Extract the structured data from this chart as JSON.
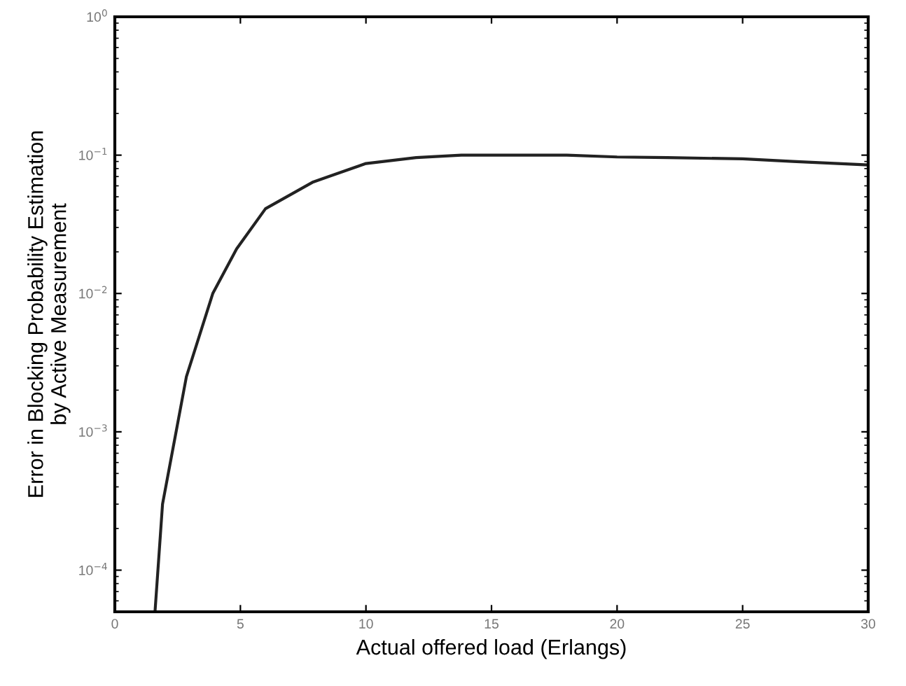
{
  "chart_data": {
    "type": "line",
    "xlabel": "Actual offered load (Erlangs)",
    "ylabel": "Error in Blocking Probability Estimation\nby Active Measurement",
    "log": "y",
    "xlim": [
      0,
      30
    ],
    "ylim": [
      5e-05,
      1
    ],
    "xticks": [
      0,
      5,
      10,
      15,
      20,
      25,
      30
    ],
    "yticks": [
      {
        "value": 0.0001,
        "label": "10$^{−4}$"
      },
      {
        "value": 0.001,
        "label": "10$^{−3}$"
      },
      {
        "value": 0.01,
        "label": "10$^{−2}$"
      },
      {
        "value": 0.1,
        "label": "10$^{−1}$"
      },
      {
        "value": 1,
        "label": "10$^{0}$"
      }
    ],
    "grid": false,
    "marker": "none",
    "line_style": "solid",
    "series": [
      {
        "color": "#222222",
        "x": [
          1.6,
          1.9,
          2.85,
          3.9,
          4.85,
          6.0,
          7.9,
          10,
          12,
          13.8,
          16,
          18,
          20,
          22,
          25,
          27,
          30
        ],
        "values": [
          5e-05,
          0.0003,
          0.0025,
          0.01,
          0.021,
          0.041,
          0.064,
          0.087,
          0.096,
          0.1,
          0.1,
          0.1,
          0.097,
          0.096,
          0.094,
          0.09,
          0.085
        ]
      }
    ]
  }
}
